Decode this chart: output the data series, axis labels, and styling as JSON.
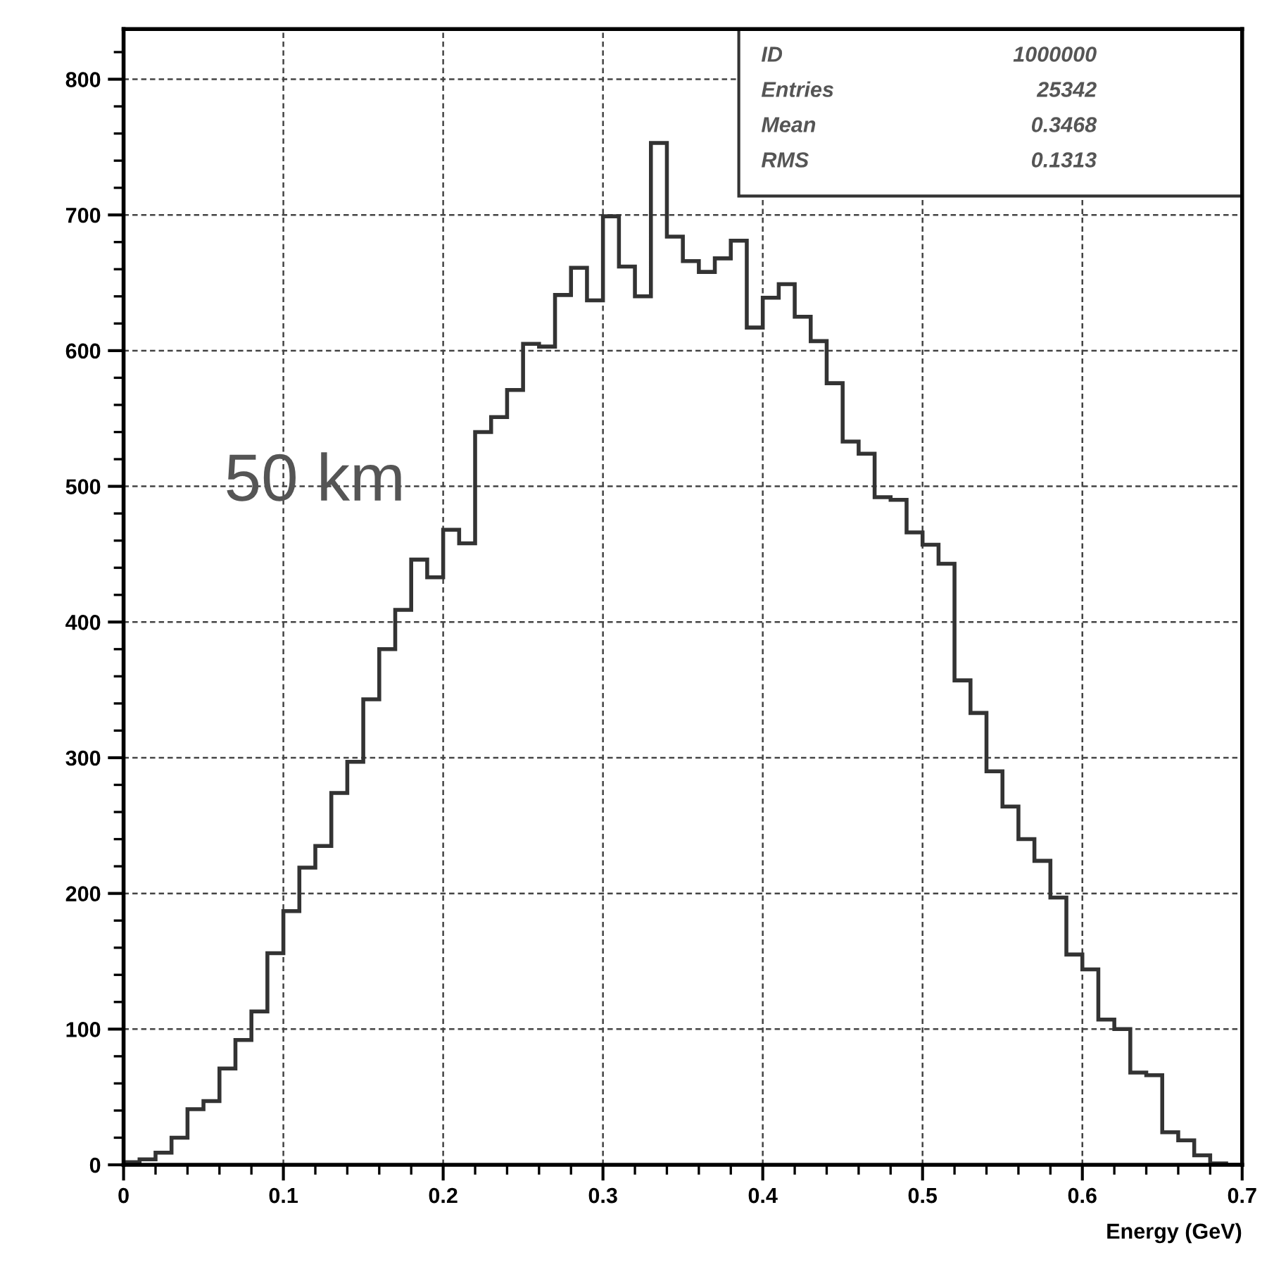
{
  "chart_data": {
    "type": "histogram",
    "xlabel": "Energy (GeV)",
    "annotations": [
      "50 km",
      "ID 1000000",
      "Entries 25342",
      "Mean 0.3468",
      "RMS 0.1313"
    ],
    "bins": [
      0,
      0.01,
      0.02,
      0.03,
      0.04,
      0.05,
      0.06,
      0.07,
      0.08,
      0.09,
      0.1,
      0.11,
      0.12,
      0.13,
      0.14,
      0.15,
      0.16,
      0.17,
      0.18,
      0.19,
      0.2,
      0.21,
      0.22,
      0.23,
      0.24,
      0.25,
      0.26,
      0.27,
      0.28,
      0.29,
      0.3,
      0.31,
      0.32,
      0.33,
      0.34,
      0.35,
      0.36,
      0.37,
      0.38,
      0.39,
      0.4,
      0.41,
      0.42,
      0.43,
      0.44,
      0.45,
      0.46,
      0.47,
      0.48,
      0.49,
      0.5,
      0.51,
      0.52,
      0.53,
      0.54,
      0.55,
      0.56,
      0.57,
      0.58,
      0.59,
      0.6,
      0.61,
      0.62,
      0.63,
      0.64,
      0.65,
      0.66,
      0.67,
      0.68,
      0.69,
      0.7
    ],
    "values": [
      2,
      4,
      9,
      20,
      41,
      47,
      71,
      92,
      113,
      156,
      187,
      219,
      235,
      274,
      297,
      343,
      380,
      409,
      446,
      433,
      468,
      458,
      540,
      551,
      571,
      605,
      603,
      641,
      661,
      637,
      699,
      662,
      640,
      753,
      684,
      666,
      658,
      668,
      681,
      617,
      639,
      649,
      625,
      607,
      576,
      533,
      524,
      492,
      490,
      466,
      457,
      443,
      357,
      333,
      290,
      264,
      240,
      224,
      197,
      155,
      144,
      107,
      100,
      68,
      66,
      24,
      18,
      7,
      1,
      0
    ],
    "color": "#333333",
    "xlim": [
      0,
      0.7
    ],
    "ylim": [
      0,
      837
    ],
    "xticks": [
      0,
      0.1,
      0.2,
      0.3,
      0.4,
      0.5,
      0.6,
      0.7
    ],
    "yticks": [
      0,
      100,
      200,
      300,
      400,
      500,
      600,
      700,
      800
    ],
    "grid": true
  }
}
